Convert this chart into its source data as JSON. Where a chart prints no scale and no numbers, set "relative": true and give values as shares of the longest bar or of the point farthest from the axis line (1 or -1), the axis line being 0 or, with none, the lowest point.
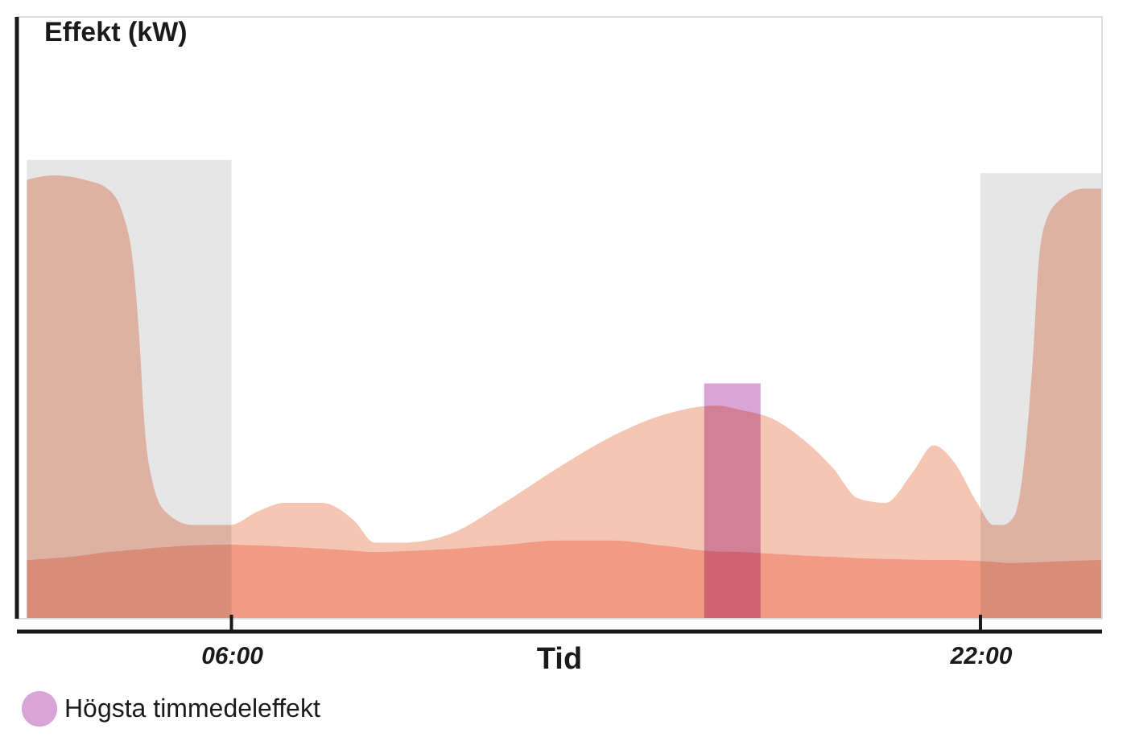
{
  "chart_data": {
    "type": "area",
    "xlabel": "Tid",
    "ylabel": "Effekt (kW)",
    "relative": true,
    "grid": false,
    "legend": "bottom left",
    "xlim": [
      1.4,
      24.58
    ],
    "xticks": [
      {
        "value": 6,
        "label": "06:00"
      },
      {
        "value": 22,
        "label": "22:00"
      }
    ],
    "x": [
      1.63,
      2.18,
      2.87,
      3.35,
      3.69,
      3.9,
      4.04,
      4.14,
      4.31,
      4.59,
      5.17,
      5.97,
      6.55,
      7.14,
      7.93,
      8.62,
      9.06,
      9.65,
      10.68,
      11.82,
      12.99,
      14.12,
      15.26,
      16.36,
      16.87,
      17.56,
      18.25,
      18.84,
      19.39,
      19.97,
      20.56,
      21.0,
      21.45,
      21.93,
      22.28,
      22.48,
      22.72,
      22.96,
      23.14,
      23.24,
      23.41,
      23.76,
      24.2,
      24.58
    ],
    "series": [
      {
        "color": "#f6c6b4",
        "values": [
          0.99,
          1.0,
          0.99,
          0.97,
          0.91,
          0.8,
          0.62,
          0.44,
          0.31,
          0.24,
          0.21,
          0.21,
          0.24,
          0.26,
          0.26,
          0.22,
          0.17,
          0.17,
          0.19,
          0.26,
          0.34,
          0.41,
          0.46,
          0.48,
          0.47,
          0.45,
          0.4,
          0.34,
          0.27,
          0.26,
          0.33,
          0.39,
          0.35,
          0.26,
          0.21,
          0.21,
          0.23,
          0.38,
          0.62,
          0.8,
          0.9,
          0.95,
          0.97,
          0.97
        ]
      },
      {
        "color": "#f19b85",
        "values": [
          0.131,
          0.135,
          0.142,
          0.149,
          0.152,
          0.154,
          0.155,
          0.156,
          0.158,
          0.16,
          0.164,
          0.166,
          0.164,
          0.161,
          0.157,
          0.152,
          0.149,
          0.151,
          0.156,
          0.165,
          0.175,
          0.175,
          0.163,
          0.15,
          0.149,
          0.145,
          0.141,
          0.138,
          0.135,
          0.133,
          0.132,
          0.131,
          0.131,
          0.129,
          0.127,
          0.125,
          0.124,
          0.125,
          0.126,
          0.126,
          0.127,
          0.128,
          0.13,
          0.131
        ]
      },
      {
        "type": "bar",
        "name": "Högsta timmedeleffekt",
        "color": "#d9a5d6",
        "x": [
          16.7
        ],
        "values": [
          0.53
        ]
      }
    ],
    "bands": [
      {
        "axis": "x",
        "from": 1.63,
        "to": 6,
        "color": "#e6e6e6"
      },
      {
        "axis": "x",
        "from": 22,
        "to": 24.58,
        "color": "#e6e6e6"
      }
    ]
  }
}
